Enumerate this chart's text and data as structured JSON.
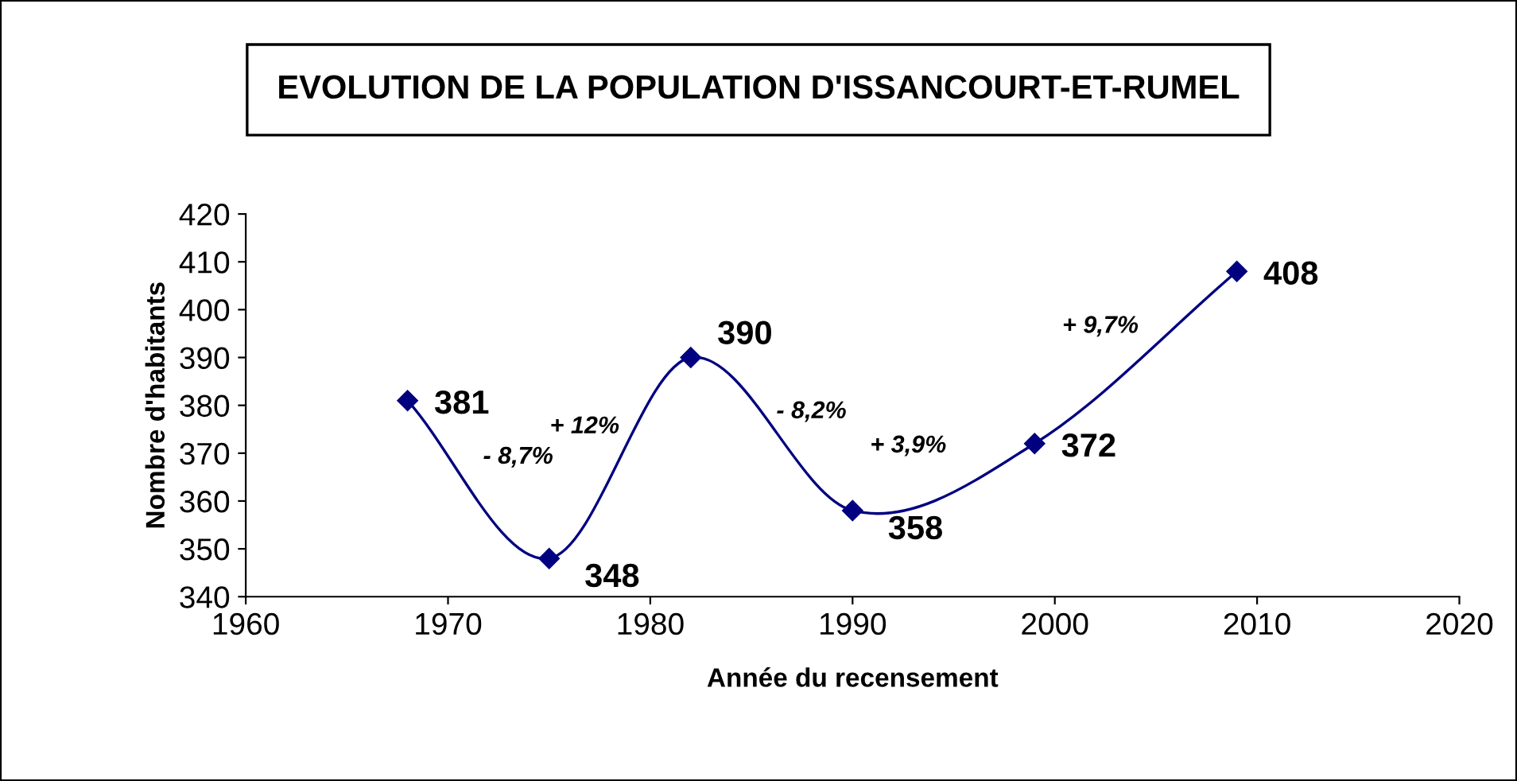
{
  "chart_data": {
    "type": "line",
    "title": "EVOLUTION DE LA POPULATION D'ISSANCOURT-ET-RUMEL",
    "xlabel": "Année du recensement",
    "ylabel": "Nombre d'habitants",
    "x": [
      1968,
      1975,
      1982,
      1990,
      1999,
      2009
    ],
    "series": [
      {
        "color": "#000080",
        "values": [
          381,
          348,
          390,
          358,
          372,
          408
        ]
      }
    ],
    "xlim": [
      1960,
      2020
    ],
    "xticks": [
      1960,
      1970,
      1980,
      1990,
      2000,
      2010,
      2020
    ],
    "ylim": [
      340,
      420
    ],
    "yticks": [
      340,
      350,
      360,
      370,
      380,
      390,
      400,
      410,
      420
    ],
    "marker": "diamond",
    "line_style": "solid",
    "grid": false,
    "legend": false,
    "data_labels": true,
    "annotations": [
      "- 8,7%",
      "+ 12%",
      "- 8,2%",
      "+ 3,9%",
      "+ 9,7%"
    ]
  }
}
